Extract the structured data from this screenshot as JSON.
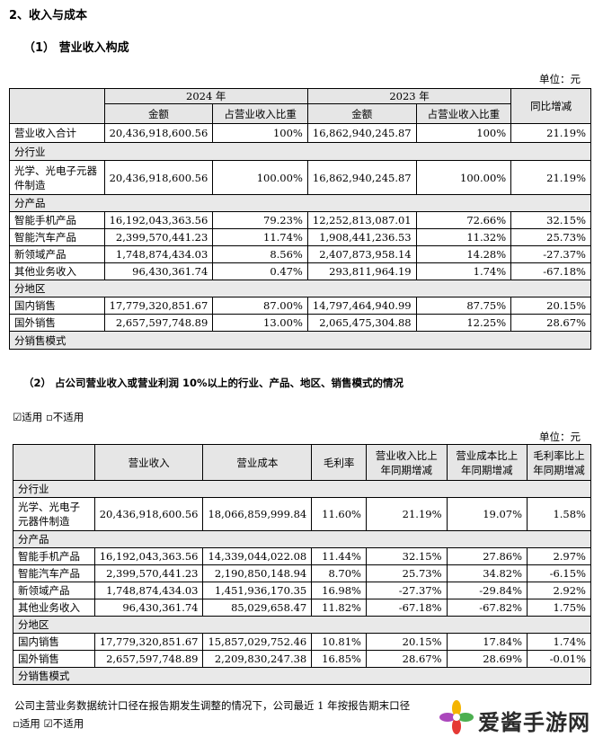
{
  "headings": {
    "section": "2、收入与成本",
    "sub1": "（1）  营业收入构成",
    "sub2": "（2）  占公司营业收入或营业利润 10%以上的行业、产品、地区、销售模式的情况"
  },
  "unit1": "单位：元",
  "unit2": "单位：元",
  "applicable_line": "☑适用 ▫不适用",
  "footnote": "公司主营业务数据统计口径在报告期发生调整的情况下，公司最近 1 年按报告期末口径",
  "footnote_check": "▫适用 ☑不适用",
  "table1": {
    "year_2024": "2024 年",
    "year_2023": "2023 年",
    "col_amount": "金额",
    "col_share": "占营业收入比重",
    "col_yoy": "同比增减",
    "total": {
      "label": "营业收入合计",
      "a24": "20,436,918,600.56",
      "s24": "100%",
      "a23": "16,862,940,245.87",
      "s23": "100%",
      "yoy": "21.19%"
    },
    "cat_industry": "分行业",
    "industry": {
      "label": "光学、光电子元器件制造",
      "a24": "20,436,918,600.56",
      "s24": "100.00%",
      "a23": "16,862,940,245.87",
      "s23": "100.00%",
      "yoy": "21.19%"
    },
    "cat_product": "分产品",
    "products": [
      {
        "label": "智能手机产品",
        "a24": "16,192,043,363.56",
        "s24": "79.23%",
        "a23": "12,252,813,087.01",
        "s23": "72.66%",
        "yoy": "32.15%"
      },
      {
        "label": "智能汽车产品",
        "a24": "2,399,570,441.23",
        "s24": "11.74%",
        "a23": "1,908,441,236.53",
        "s23": "11.32%",
        "yoy": "25.73%"
      },
      {
        "label": "新领域产品",
        "a24": "1,748,874,434.03",
        "s24": "8.56%",
        "a23": "2,407,873,958.14",
        "s23": "14.28%",
        "yoy": "-27.37%"
      },
      {
        "label": "其他业务收入",
        "a24": "96,430,361.74",
        "s24": "0.47%",
        "a23": "293,811,964.19",
        "s23": "1.74%",
        "yoy": "-67.18%"
      }
    ],
    "cat_region": "分地区",
    "regions": [
      {
        "label": "国内销售",
        "a24": "17,779,320,851.67",
        "s24": "87.00%",
        "a23": "14,797,464,940.99",
        "s23": "87.75%",
        "yoy": "20.15%"
      },
      {
        "label": "国外销售",
        "a24": "2,657,597,748.89",
        "s24": "13.00%",
        "a23": "2,065,475,304.88",
        "s23": "12.25%",
        "yoy": "28.67%"
      }
    ],
    "cat_mode": "分销售模式"
  },
  "table2": {
    "col_revenue": "营业收入",
    "col_cost": "营业成本",
    "col_margin": "毛利率",
    "col_rev_yoy": "营业收入比上年同期增减",
    "col_cost_yoy": "营业成本比上年同期增减",
    "col_margin_yoy": "毛利率比上年同期增减",
    "cat_industry": "分行业",
    "industry": {
      "label": "光学、光电子元器件制造",
      "rev": "20,436,918,600.56",
      "cost": "18,066,859,999.84",
      "margin": "11.60%",
      "rev_yoy": "21.19%",
      "cost_yoy": "19.07%",
      "margin_yoy": "1.58%"
    },
    "cat_product": "分产品",
    "products": [
      {
        "label": "智能手机产品",
        "rev": "16,192,043,363.56",
        "cost": "14,339,044,022.08",
        "margin": "11.44%",
        "rev_yoy": "32.15%",
        "cost_yoy": "27.86%",
        "margin_yoy": "2.97%"
      },
      {
        "label": "智能汽车产品",
        "rev": "2,399,570,441.23",
        "cost": "2,190,850,148.94",
        "margin": "8.70%",
        "rev_yoy": "25.73%",
        "cost_yoy": "34.82%",
        "margin_yoy": "-6.15%"
      },
      {
        "label": "新领域产品",
        "rev": "1,748,874,434.03",
        "cost": "1,451,936,170.35",
        "margin": "16.98%",
        "rev_yoy": "-27.37%",
        "cost_yoy": "-29.84%",
        "margin_yoy": "2.92%"
      },
      {
        "label": "其他业务收入",
        "rev": "96,430,361.74",
        "cost": "85,029,658.47",
        "margin": "11.82%",
        "rev_yoy": "-67.18%",
        "cost_yoy": "-67.82%",
        "margin_yoy": "1.75%"
      }
    ],
    "cat_region": "分地区",
    "regions": [
      {
        "label": "国内销售",
        "rev": "17,779,320,851.67",
        "cost": "15,857,029,752.46",
        "margin": "10.81%",
        "rev_yoy": "20.15%",
        "cost_yoy": "17.84%",
        "margin_yoy": "1.74%"
      },
      {
        "label": "国外销售",
        "rev": "2,657,597,748.89",
        "cost": "2,209,830,247.38",
        "margin": "16.85%",
        "rev_yoy": "28.67%",
        "cost_yoy": "28.69%",
        "margin_yoy": "-0.01%"
      }
    ],
    "cat_mode": "分销售模式"
  },
  "watermark": {
    "text": "爱酱手游网",
    "icon": "pinwheel-icon"
  }
}
